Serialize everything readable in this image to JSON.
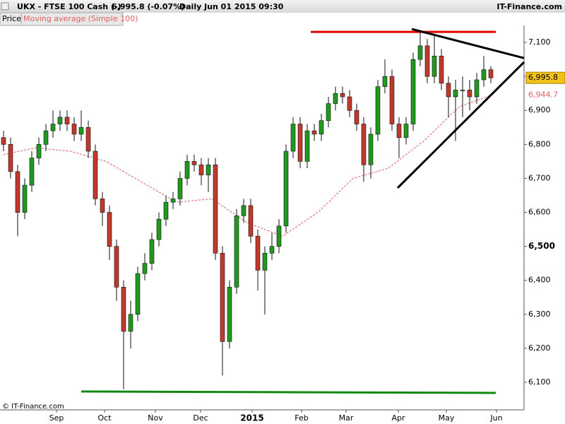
{
  "chart_data": {
    "type": "candlestick",
    "header": {
      "symbol": "UKX - FTSE 100 Cash (-)",
      "quote": "6,995.8 (-0.07%)",
      "period": "Daily  Jun 01 2015 09:30",
      "brand": "IT-Finance.com",
      "tab_price": "Price",
      "tab_indicator": "Moving average (Simple 100)",
      "footer": "© IT-Finance.com"
    },
    "up_color": "#1f9a1f",
    "down_color": "#c0392b",
    "open": [
      6820,
      6800,
      6720,
      6600,
      6680,
      6760,
      6800,
      6840,
      6860,
      6880,
      6860,
      6830,
      6850,
      6780,
      6640,
      6600,
      6500,
      6380,
      6250,
      6300,
      6420,
      6450,
      6520,
      6580,
      6630,
      6640,
      6700,
      6750,
      6740,
      6710,
      6740,
      6480,
      6220,
      6380,
      6590,
      6620,
      6530,
      6430,
      6480,
      6500,
      6560,
      6780,
      6860,
      6750,
      6840,
      6830,
      6870,
      6920,
      6950,
      6940,
      6900,
      6860,
      6740,
      6830,
      6970,
      7000,
      6860,
      6820,
      6860,
      7050,
      7090,
      7000,
      7060,
      6980,
      6940,
      6960,
      6960,
      6940,
      6990,
      7020
    ],
    "high": [
      6840,
      6820,
      6740,
      6700,
      6780,
      6820,
      6860,
      6900,
      6900,
      6900,
      6880,
      6900,
      6870,
      6800,
      6660,
      6620,
      6520,
      6400,
      6340,
      6440,
      6480,
      6540,
      6600,
      6650,
      6660,
      6720,
      6770,
      6770,
      6760,
      6760,
      6760,
      6500,
      6400,
      6610,
      6640,
      6640,
      6550,
      6500,
      6540,
      6580,
      6800,
      6880,
      6880,
      6860,
      6860,
      6890,
      6940,
      6970,
      6970,
      6960,
      6920,
      6880,
      6850,
      6990,
      7050,
      7020,
      6880,
      6880,
      7070,
      7130,
      7110,
      7120,
      7080,
      7000,
      6990,
      7000,
      6990,
      7010,
      7060,
      7030
    ],
    "low": [
      6780,
      6700,
      6530,
      6580,
      6660,
      6740,
      6780,
      6820,
      6840,
      6840,
      6810,
      6810,
      6760,
      6620,
      6560,
      6460,
      6340,
      6080,
      6200,
      6280,
      6400,
      6430,
      6500,
      6560,
      6610,
      6620,
      6680,
      6720,
      6680,
      6660,
      6460,
      6120,
      6200,
      6360,
      6570,
      6510,
      6370,
      6300,
      6460,
      6480,
      6540,
      6760,
      6730,
      6730,
      6810,
      6810,
      6850,
      6900,
      6920,
      6880,
      6840,
      6690,
      6700,
      6810,
      6950,
      6840,
      6760,
      6800,
      6840,
      7030,
      6980,
      6980,
      6960,
      6880,
      6810,
      6880,
      6900,
      6920,
      6970,
      6980
    ],
    "close": [
      6800,
      6720,
      6600,
      6680,
      6760,
      6800,
      6840,
      6860,
      6880,
      6860,
      6830,
      6850,
      6780,
      6640,
      6600,
      6500,
      6380,
      6250,
      6300,
      6420,
      6450,
      6520,
      6580,
      6630,
      6640,
      6700,
      6750,
      6740,
      6710,
      6740,
      6480,
      6220,
      6380,
      6590,
      6620,
      6530,
      6430,
      6480,
      6500,
      6560,
      6780,
      6860,
      6750,
      6840,
      6830,
      6870,
      6920,
      6950,
      6940,
      6900,
      6860,
      6740,
      6830,
      6970,
      7000,
      6860,
      6820,
      6860,
      7050,
      7090,
      7000,
      7060,
      6980,
      6940,
      6960,
      6960,
      6940,
      6990,
      7020,
      6995.8
    ],
    "moving_average": {
      "color": "#e06060",
      "x": [
        0,
        4.5,
        9.5,
        14.5,
        19.5,
        24.5,
        29.5,
        34.5,
        39.5,
        44.5,
        49.5,
        54.5,
        59.5,
        64.5,
        69
      ],
      "values": [
        6770,
        6790,
        6780,
        6750,
        6690,
        6630,
        6640,
        6570,
        6530,
        6600,
        6700,
        6730,
        6810,
        6910,
        6944.7
      ]
    },
    "lines": [
      {
        "color": "#e00000",
        "x": [
          43.5,
          69.7
        ],
        "values": [
          7131,
          7131
        ]
      },
      {
        "color": "#118811",
        "x": [
          11,
          69.7
        ],
        "values": [
          6073,
          6069
        ]
      },
      {
        "color": "#000000",
        "x": [
          57.8,
          73.7
        ],
        "values": [
          7139.5,
          7054
        ]
      },
      {
        "color": "#000000",
        "x": [
          55.8,
          73.7
        ],
        "values": [
          6672,
          7042
        ]
      }
    ],
    "price_label": {
      "value": 6995.8,
      "label": "6,995.8"
    },
    "ma_label": {
      "value": 6944.7,
      "label": "6,944.7"
    },
    "xlim": [
      -0.5,
      73.7
    ],
    "ylim": [
      6019,
      7150
    ],
    "xticks": [
      {
        "value": 7.5,
        "label": "Sep"
      },
      {
        "value": 14.3,
        "label": "Oct"
      },
      {
        "value": 21.5,
        "label": "Nov"
      },
      {
        "value": 27.9,
        "label": "Dec"
      },
      {
        "value": 35.2,
        "label": "2015",
        "bold": true
      },
      {
        "value": 42.2,
        "label": "Feb"
      },
      {
        "value": 48.5,
        "label": "Mar"
      },
      {
        "value": 55.9,
        "label": "Apr"
      },
      {
        "value": 62.7,
        "label": "May"
      },
      {
        "value": 69.8,
        "label": "Jun"
      }
    ],
    "yticks": [
      {
        "value": 6100,
        "label": "6,100"
      },
      {
        "value": 6200,
        "label": "6,200"
      },
      {
        "value": 6300,
        "label": "6,300"
      },
      {
        "value": 6400,
        "label": "6,400"
      },
      {
        "value": 6500,
        "label": "6,500",
        "bold": true
      },
      {
        "value": 6600,
        "label": "6,600"
      },
      {
        "value": 6700,
        "label": "6,700"
      },
      {
        "value": 6800,
        "label": "6,800"
      },
      {
        "value": 6900,
        "label": "6,900"
      },
      {
        "value": 7000,
        "label": "7,000"
      },
      {
        "value": 7100,
        "label": "7,100"
      }
    ]
  }
}
